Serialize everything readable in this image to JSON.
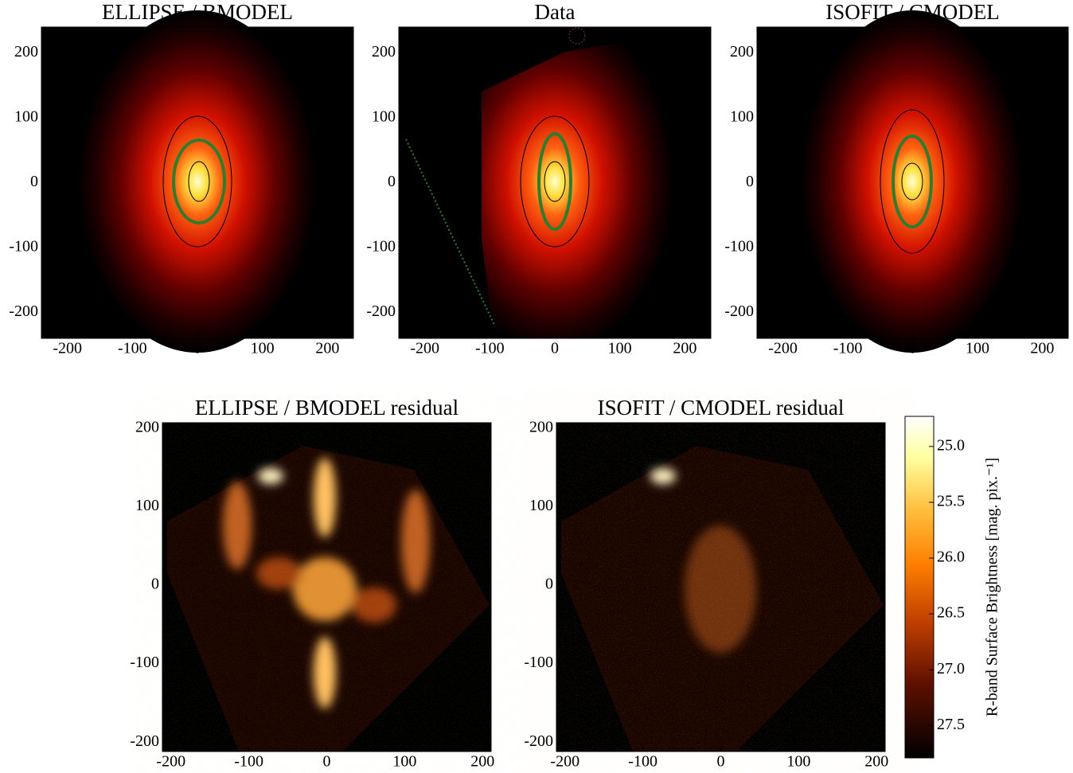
{
  "chart_data": [
    {
      "type": "image",
      "title": "ELLIPSE / BMODEL",
      "xlim": [
        -240,
        240
      ],
      "ylim": [
        -240,
        240
      ],
      "xticks": [
        -200,
        -100,
        0,
        100,
        200
      ],
      "yticks": [
        -200,
        -100,
        0,
        100,
        200
      ]
    },
    {
      "type": "image",
      "title": "Data",
      "xlim": [
        -240,
        240
      ],
      "ylim": [
        -240,
        240
      ],
      "xticks": [
        -200,
        -100,
        0,
        100,
        200
      ],
      "yticks": [
        -200,
        -100,
        0,
        100,
        200
      ]
    },
    {
      "type": "image",
      "title": "ISOFIT / CMODEL",
      "xlim": [
        -240,
        240
      ],
      "ylim": [
        -240,
        240
      ],
      "xticks": [
        -200,
        -100,
        0,
        100,
        200
      ],
      "yticks": [
        -200,
        -100,
        0,
        100,
        200
      ]
    },
    {
      "type": "image",
      "title": "ELLIPSE / BMODEL residual",
      "xlim": [
        -211,
        211
      ],
      "ylim": [
        -212,
        207
      ],
      "xticks": [
        -200,
        -100,
        0,
        100,
        200
      ],
      "yticks": [
        -200,
        -100,
        0,
        100,
        200
      ]
    },
    {
      "type": "image",
      "title": "ISOFIT / CMODEL residual",
      "xlim": [
        -211,
        211
      ],
      "ylim": [
        -212,
        207
      ],
      "xticks": [
        -200,
        -100,
        0,
        100,
        200
      ],
      "yticks": [
        -200,
        -100,
        0,
        100,
        200
      ]
    },
    {
      "type": "colorbar",
      "label": "R-band Surface Brightness [mag. pix.⁻¹]",
      "ylim": [
        27.79,
        24.73
      ],
      "yticks": [
        {
          "value": 25,
          "label": "25.0"
        },
        25.5,
        {
          "value": 26,
          "label": "26.0"
        },
        26.5,
        {
          "value": 27,
          "label": "27.0"
        },
        27.5
      ]
    }
  ]
}
